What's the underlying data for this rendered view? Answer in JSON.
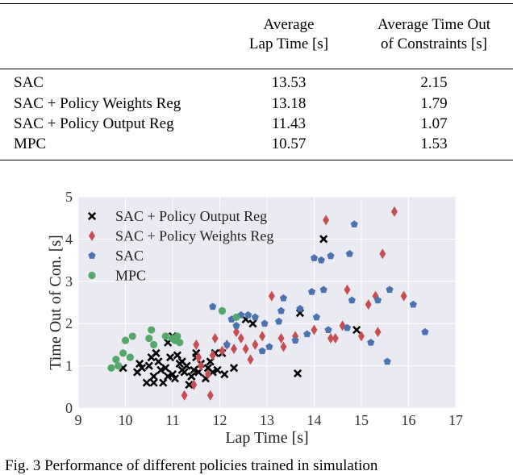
{
  "table": {
    "headers": [
      {
        "line1": "Average",
        "line2": "Lap Time [s]"
      },
      {
        "line1": "Average Time Out",
        "line2": "of Constraints [s]"
      }
    ],
    "rows": [
      {
        "name": "SAC",
        "lap": "13.53",
        "out": "2.15"
      },
      {
        "name": "SAC + Policy Weights Reg",
        "lap": "13.18",
        "out": "1.79"
      },
      {
        "name": "SAC + Policy Output Reg",
        "lap": "11.43",
        "out": "1.07"
      },
      {
        "name": "MPC",
        "lap": "10.57",
        "out": "1.53"
      }
    ]
  },
  "chart_data": {
    "type": "scatter",
    "xlabel": "Lap Time [s]",
    "ylabel": "Time Out of Con. [s]",
    "xlim": [
      9,
      17
    ],
    "ylim": [
      0,
      5
    ],
    "xticks": [
      "9",
      "10",
      "11",
      "12",
      "13",
      "14",
      "15",
      "16",
      "17"
    ],
    "yticks": [
      "0",
      "1",
      "2",
      "3",
      "4",
      "5"
    ],
    "grid": true,
    "legend_position": "upper-left",
    "series": [
      {
        "name": "SAC + Policy Output Reg",
        "marker": "x",
        "color": "#000000",
        "points": [
          [
            9.95,
            0.95
          ],
          [
            10.25,
            0.85
          ],
          [
            10.35,
            0.95
          ],
          [
            10.45,
            0.6
          ],
          [
            10.5,
            1.0
          ],
          [
            10.55,
            1.2
          ],
          [
            10.6,
            0.75
          ],
          [
            10.65,
            1.3
          ],
          [
            10.7,
            1.1
          ],
          [
            10.75,
            0.9
          ],
          [
            10.8,
            0.6
          ],
          [
            10.85,
            0.95
          ],
          [
            10.9,
            0.75
          ],
          [
            10.95,
            1.2
          ],
          [
            11.0,
            0.8
          ],
          [
            11.05,
            0.7
          ],
          [
            11.1,
            1.25
          ],
          [
            11.15,
            1.05
          ],
          [
            11.2,
            0.9
          ],
          [
            11.25,
            0.85
          ],
          [
            11.3,
            1.0
          ],
          [
            11.35,
            0.55
          ],
          [
            11.4,
            0.75
          ],
          [
            11.45,
            0.9
          ],
          [
            11.5,
            1.2
          ],
          [
            11.55,
            0.85
          ],
          [
            11.6,
            1.05
          ],
          [
            11.7,
            0.7
          ],
          [
            11.75,
            0.95
          ],
          [
            11.8,
            1.1
          ],
          [
            11.85,
            0.85
          ],
          [
            11.9,
            1.3
          ],
          [
            11.95,
            0.9
          ],
          [
            12.05,
            1.3
          ],
          [
            12.1,
            0.8
          ],
          [
            12.3,
            0.95
          ],
          [
            12.55,
            2.1
          ],
          [
            12.7,
            2.0
          ],
          [
            13.65,
            0.82
          ],
          [
            13.7,
            2.25
          ],
          [
            14.2,
            4.0
          ],
          [
            14.9,
            1.85
          ],
          [
            10.3,
            1.05
          ],
          [
            10.6,
            0.6
          ],
          [
            10.9,
            1.55
          ],
          [
            11.0,
            1.7
          ],
          [
            11.2,
            1.1
          ],
          [
            11.5,
            1.3
          ]
        ]
      },
      {
        "name": "SAC + Policy Weights Reg",
        "marker": "diamond",
        "color": "#c44e52",
        "points": [
          [
            11.25,
            0.3
          ],
          [
            11.45,
            0.55
          ],
          [
            11.5,
            1.5
          ],
          [
            11.55,
            1.2
          ],
          [
            11.6,
            1.0
          ],
          [
            11.75,
            0.8
          ],
          [
            11.8,
            0.3
          ],
          [
            11.85,
            1.25
          ],
          [
            11.9,
            1.65
          ],
          [
            12.05,
            1.35
          ],
          [
            12.15,
            1.5
          ],
          [
            12.3,
            1.4
          ],
          [
            12.35,
            1.8
          ],
          [
            12.45,
            1.65
          ],
          [
            12.55,
            1.4
          ],
          [
            12.65,
            1.15
          ],
          [
            12.75,
            1.5
          ],
          [
            12.9,
            1.7
          ],
          [
            13.1,
            2.65
          ],
          [
            13.3,
            1.65
          ],
          [
            13.35,
            1.45
          ],
          [
            13.6,
            1.7
          ],
          [
            14.0,
            1.85
          ],
          [
            14.25,
            4.45
          ],
          [
            14.35,
            1.65
          ],
          [
            14.45,
            1.65
          ],
          [
            14.6,
            1.95
          ],
          [
            14.7,
            2.8
          ],
          [
            15.0,
            1.7
          ],
          [
            15.15,
            2.45
          ],
          [
            15.3,
            2.65
          ],
          [
            15.35,
            1.8
          ],
          [
            15.45,
            3.65
          ],
          [
            15.7,
            4.65
          ],
          [
            15.9,
            2.65
          ]
        ]
      },
      {
        "name": "SAC",
        "marker": "pentagon",
        "color": "#4c72b0",
        "points": [
          [
            11.85,
            2.4
          ],
          [
            12.05,
            2.3
          ],
          [
            12.15,
            1.5
          ],
          [
            12.25,
            2.1
          ],
          [
            12.35,
            1.95
          ],
          [
            12.45,
            2.2
          ],
          [
            12.6,
            2.2
          ],
          [
            12.75,
            2.15
          ],
          [
            12.95,
            2.0
          ],
          [
            13.05,
            1.45
          ],
          [
            13.25,
            2.05
          ],
          [
            13.3,
            2.3
          ],
          [
            13.35,
            2.6
          ],
          [
            13.6,
            1.6
          ],
          [
            13.7,
            2.35
          ],
          [
            13.85,
            1.75
          ],
          [
            13.95,
            2.75
          ],
          [
            14.0,
            3.55
          ],
          [
            14.05,
            2.15
          ],
          [
            14.15,
            3.5
          ],
          [
            14.3,
            1.85
          ],
          [
            14.35,
            3.6
          ],
          [
            14.7,
            1.9
          ],
          [
            14.75,
            3.65
          ],
          [
            14.85,
            4.35
          ],
          [
            15.2,
            1.55
          ],
          [
            15.35,
            2.55
          ],
          [
            15.55,
            1.1
          ],
          [
            15.6,
            2.8
          ],
          [
            16.1,
            2.45
          ],
          [
            16.35,
            1.8
          ],
          [
            14.8,
            2.55
          ],
          [
            14.2,
            2.8
          ],
          [
            12.9,
            1.35
          ]
        ]
      },
      {
        "name": "MPC",
        "marker": "circle",
        "color": "#55a868",
        "points": [
          [
            9.7,
            0.95
          ],
          [
            9.8,
            1.15
          ],
          [
            9.85,
            1.0
          ],
          [
            9.95,
            1.3
          ],
          [
            10.0,
            1.6
          ],
          [
            10.15,
            1.7
          ],
          [
            10.5,
            1.65
          ],
          [
            10.55,
            1.85
          ],
          [
            10.6,
            1.5
          ],
          [
            10.85,
            1.7
          ],
          [
            11.0,
            1.65
          ],
          [
            11.05,
            1.6
          ],
          [
            11.15,
            1.55
          ],
          [
            11.1,
            1.7
          ],
          [
            12.05,
            2.3
          ],
          [
            12.35,
            2.15
          ],
          [
            10.1,
            1.2
          ]
        ]
      }
    ]
  },
  "caption": "Fig. 3 Performance of different policies trained in simulation"
}
